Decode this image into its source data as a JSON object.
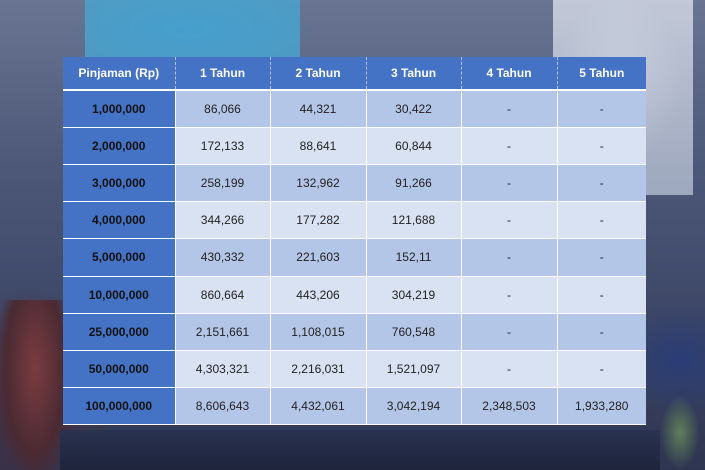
{
  "table": {
    "headers": [
      "Pinjaman (Rp)",
      "1 Tahun",
      "2 Tahun",
      "3 Tahun",
      "4 Tahun",
      "5 Tahun"
    ],
    "rows": [
      [
        "1,000,000",
        "86,066",
        "44,321",
        "30,422",
        "-",
        "-"
      ],
      [
        "2,000,000",
        "172,133",
        "88,641",
        "60,844",
        "-",
        "-"
      ],
      [
        "3,000,000",
        "258,199",
        "132,962",
        "91,266",
        "-",
        "-"
      ],
      [
        "4,000,000",
        "344,266",
        "177,282",
        "121,688",
        "-",
        "-"
      ],
      [
        "5,000,000",
        "430,332",
        "221,603",
        "152,11",
        "-",
        "-"
      ],
      [
        "10,000,000",
        "860,664",
        "443,206",
        "304,219",
        "-",
        "-"
      ],
      [
        "25,000,000",
        "2,151,661",
        "1,108,015",
        "760,548",
        "-",
        "-"
      ],
      [
        "50,000,000",
        "4,303,321",
        "2,216,031",
        "1,521,097",
        "-",
        "-"
      ],
      [
        "100,000,000",
        "8,606,643",
        "4,432,061",
        "3,042,194",
        "2,348,503",
        "1,933,280"
      ]
    ]
  },
  "colors": {
    "header_bg": "#4472c4",
    "row_odd": "#b4c6e7",
    "row_even": "#d9e2f3"
  }
}
